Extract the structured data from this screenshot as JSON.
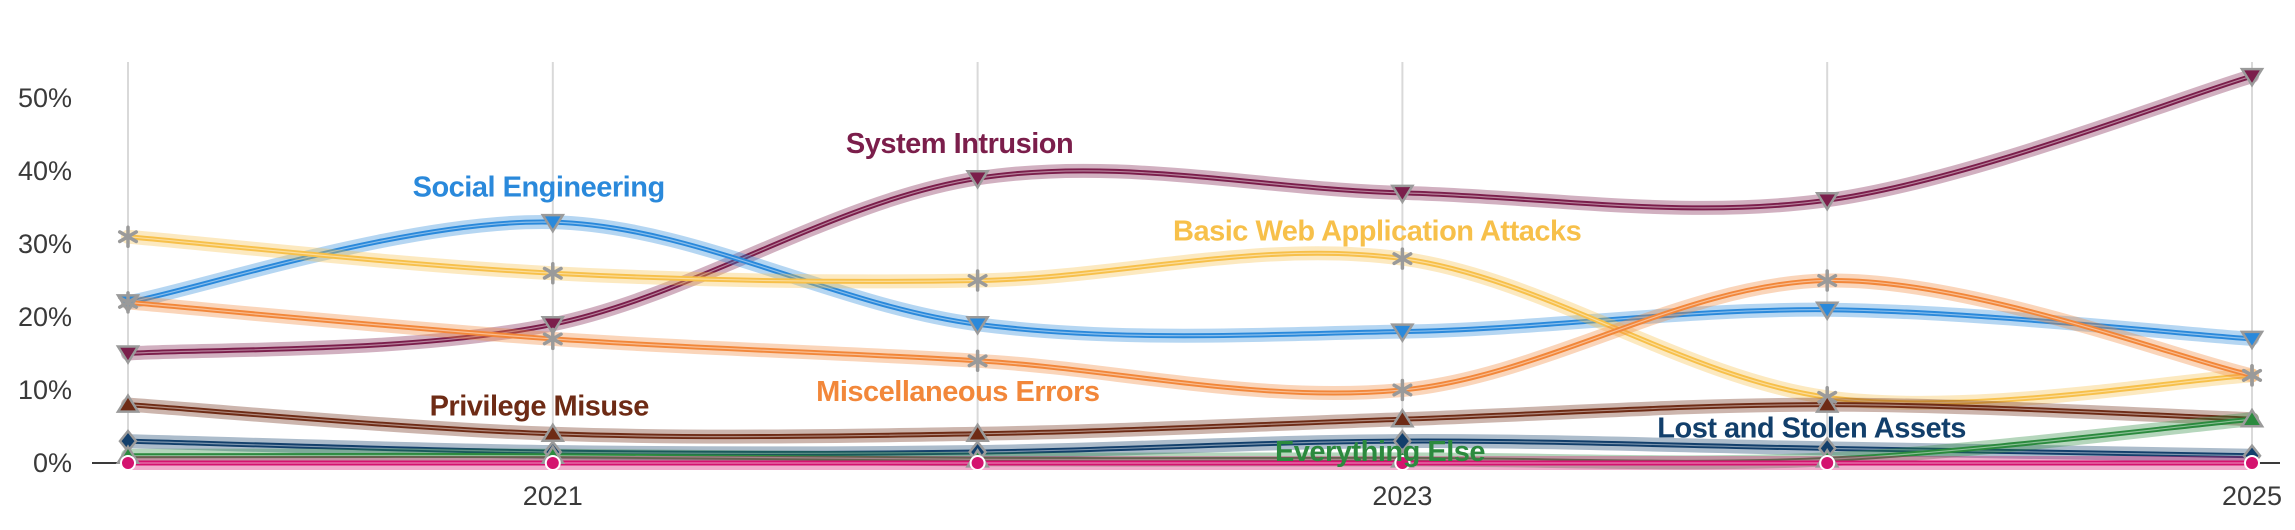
{
  "chart_data": {
    "type": "line",
    "x": [
      2020,
      2021,
      2022,
      2023,
      2024,
      2025
    ],
    "x_tick_labels": [
      "2021",
      "2023",
      "2025"
    ],
    "x_tick_values": [
      2021,
      2023,
      2025
    ],
    "y_tick_labels": [
      "0%",
      "10%",
      "20%",
      "30%",
      "40%",
      "50%"
    ],
    "y_tick_values": [
      0,
      10,
      20,
      30,
      40,
      50
    ],
    "ylim": [
      0,
      55
    ],
    "xlim": [
      2020,
      2025
    ],
    "grid": "vertical",
    "series": [
      {
        "name": "System Intrusion",
        "color": "#7b1e4b",
        "marker": "triangle-down",
        "values": [
          15,
          19,
          39,
          37,
          36,
          53
        ]
      },
      {
        "name": "Social Engineering",
        "color": "#2a89db",
        "marker": "triangle-down",
        "values": [
          22,
          33,
          19,
          18,
          21,
          17
        ]
      },
      {
        "name": "Basic Web Application Attacks",
        "color": "#f7c04a",
        "marker": "asterisk",
        "values": [
          31,
          26,
          25,
          28,
          9,
          12
        ]
      },
      {
        "name": "Miscellaneous Errors",
        "color": "#f2873a",
        "marker": "asterisk",
        "values": [
          22,
          17,
          14,
          10,
          25,
          12
        ]
      },
      {
        "name": "Privilege Misuse",
        "color": "#6e2b15",
        "marker": "triangle-up",
        "values": [
          8,
          4,
          4,
          6,
          8,
          6
        ]
      },
      {
        "name": "Lost and Stolen Assets",
        "color": "#123f6b",
        "marker": "diamond",
        "values": [
          3,
          1.5,
          1.5,
          3,
          2,
          1
        ]
      },
      {
        "name": "Everything Else",
        "color": "#2b8a3e",
        "marker": "triangle-up",
        "values": [
          1,
          1,
          0.5,
          0.5,
          0.5,
          6
        ]
      },
      {
        "name": "",
        "color": "#d4136f",
        "marker": "circle",
        "values": [
          0,
          0,
          0,
          0,
          0,
          0
        ]
      }
    ],
    "labels": [
      {
        "text": "System Intrusion",
        "color": "#7b1e4b",
        "x": 2021.69,
        "y": 42.5,
        "anchor": "start"
      },
      {
        "text": "Social Engineering",
        "color": "#2a89db",
        "x": 2020.67,
        "y": 36.5,
        "anchor": "start"
      },
      {
        "text": "Basic Web Application Attacks",
        "color": "#f7c04a",
        "x": 2022.46,
        "y": 30.5,
        "anchor": "start"
      },
      {
        "text": "Privilege Misuse",
        "color": "#6e2b15",
        "x": 2020.71,
        "y": 6.5,
        "anchor": "start"
      },
      {
        "text": "Miscellaneous Errors",
        "color": "#f2873a",
        "x": 2021.62,
        "y": 8.5,
        "anchor": "start"
      },
      {
        "text": "Everything Else",
        "color": "#2b8a3e",
        "x": 2022.7,
        "y": 0.3,
        "anchor": "start"
      },
      {
        "text": "Lost and Stolen Assets",
        "color": "#123f6b",
        "x": 2023.6,
        "y": 3.5,
        "anchor": "start"
      }
    ]
  }
}
